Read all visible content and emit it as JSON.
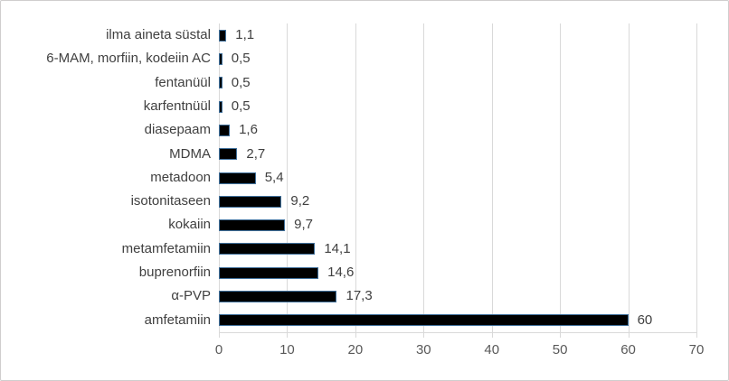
{
  "chart_data": {
    "type": "bar",
    "orientation": "horizontal",
    "title": "",
    "xlabel": "",
    "ylabel": "",
    "categories": [
      "ilma aineta süstal",
      "6-MAM, morfiin, kodeiin AC",
      "fentanüül",
      "karfentnüül",
      "diasepaam",
      "MDMA",
      "metadoon",
      "isotonitaseen",
      "kokaiin",
      "metamfetamiin",
      "buprenorfiin",
      "α-PVP",
      "amfetamiin"
    ],
    "values": [
      1.1,
      0.5,
      0.5,
      0.5,
      1.6,
      2.7,
      5.4,
      9.2,
      9.7,
      14.1,
      14.6,
      17.3,
      60
    ],
    "value_labels": [
      "1,1",
      "0,5",
      "0,5",
      "0,5",
      "1,6",
      "2,7",
      "5,4",
      "9,2",
      "9,7",
      "14,1",
      "14,6",
      "17,3",
      "60"
    ],
    "xlim": [
      0,
      70
    ],
    "xticks": [
      0,
      10,
      20,
      30,
      40,
      50,
      60,
      70
    ],
    "xtick_labels": [
      "0",
      "10",
      "20",
      "30",
      "40",
      "50",
      "60",
      "70"
    ],
    "grid": true,
    "legend": false,
    "colors": {
      "bar_fill": "#000000",
      "bar_border": "#41719c",
      "gridline": "#d9d9d9",
      "axis_line": "#d9d9d9",
      "tick_label": "#595959",
      "category_label": "#404040",
      "value_label": "#404040",
      "frame_border": "#d0cece",
      "background": "#ffffff"
    }
  }
}
